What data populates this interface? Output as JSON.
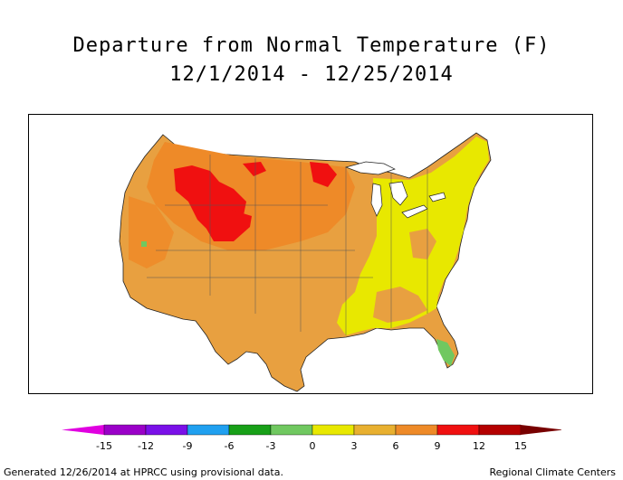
{
  "title_line1": "Departure from Normal Temperature (F)",
  "title_line2": "12/1/2014 - 12/25/2014",
  "legend": {
    "ticks": [
      "-15",
      "-12",
      "-9",
      "-6",
      "-3",
      "0",
      "3",
      "6",
      "9",
      "12",
      "15"
    ],
    "colors": [
      "#e000e0",
      "#9a00c8",
      "#7a10e8",
      "#20a0f0",
      "#18a018",
      "#70c860",
      "#e8e800",
      "#e8b030",
      "#ee8a28",
      "#f01010",
      "#b40000",
      "#780000"
    ]
  },
  "map_colors": {
    "base": "#e8a040",
    "warm": "#ee8a28",
    "hot": "#f01010",
    "near_normal": "#e8e800",
    "cool": "#70c860"
  },
  "footer_left": "Generated 12/26/2014 at HPRCC using provisional data.",
  "footer_right": "Regional Climate Centers"
}
